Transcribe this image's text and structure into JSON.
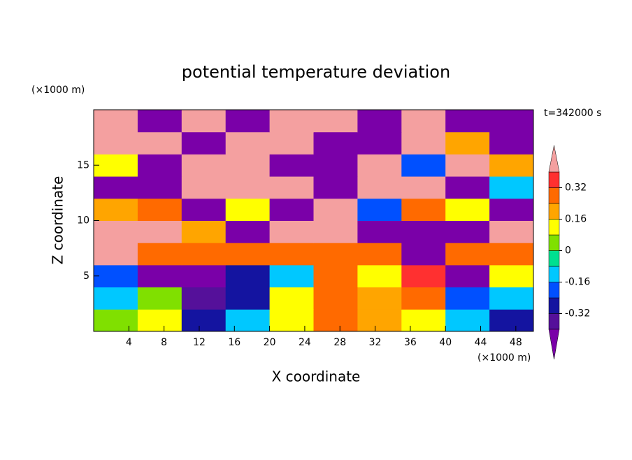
{
  "chart_data": {
    "type": "contour",
    "title": "potential temperature deviation",
    "x_label": "X coordinate",
    "y_label": "Z coordinate",
    "x_unit": "(×1000 m)",
    "y_unit": "(×1000 m)",
    "annotation": "t=342000 s",
    "x": [
      2.5,
      7.5,
      12.5,
      17.5,
      22.5,
      27.5,
      32.5,
      37.5,
      42.5,
      47.5
    ],
    "y": [
      1,
      3,
      5,
      7,
      9,
      11,
      13,
      15,
      17,
      19
    ],
    "z": [
      [
        0,
        0.1,
        -0.3,
        -0.1,
        0.1,
        0.3,
        0.2,
        0.1,
        -0.1,
        -0.3
      ],
      [
        -0.1,
        0.05,
        -0.35,
        -0.3,
        0.1,
        0.3,
        0.2,
        0.3,
        -0.2,
        -0.1
      ],
      [
        -0.2,
        -0.45,
        -0.45,
        -0.3,
        -0.1,
        0.3,
        0.1,
        0.35,
        -0.45,
        0.1
      ],
      [
        0.45,
        0.3,
        0.3,
        0.25,
        0.3,
        0.3,
        0.25,
        -0.45,
        0.3,
        0.3
      ],
      [
        0.45,
        0.45,
        0.2,
        -0.45,
        0.45,
        0.45,
        -0.45,
        -0.45,
        -0.45,
        0.45
      ],
      [
        0.2,
        0.3,
        -0.45,
        0.1,
        -0.45,
        0.45,
        -0.2,
        0.3,
        0.1,
        -0.45
      ],
      [
        -0.45,
        -0.45,
        0.45,
        0.45,
        0.45,
        -0.45,
        0.45,
        0.45,
        -0.45,
        -0.1
      ],
      [
        0.1,
        -0.45,
        0.45,
        0.45,
        -0.45,
        -0.45,
        0.45,
        -0.2,
        0.45,
        0.2
      ],
      [
        0.45,
        0.45,
        -0.45,
        0.45,
        0.45,
        -0.45,
        -0.45,
        0.45,
        0.2,
        -0.45
      ],
      [
        0.45,
        -0.45,
        0.45,
        -0.45,
        0.45,
        0.45,
        -0.45,
        0.45,
        -0.45,
        -0.45
      ]
    ],
    "xlim": [
      0,
      50
    ],
    "ylim": [
      0,
      20
    ],
    "xticks": [
      4,
      8,
      12,
      16,
      20,
      24,
      28,
      32,
      36,
      40,
      44,
      48
    ],
    "yticks": [
      5,
      10,
      15
    ],
    "levels": [
      -0.4,
      -0.32,
      -0.24,
      -0.16,
      -0.08,
      0,
      0.08,
      0.16,
      0.24,
      0.32,
      0.4
    ],
    "colors": [
      "#7a00a8",
      "#55109a",
      "#1414a0",
      "#0050ff",
      "#00c8ff",
      "#00e090",
      "#80e000",
      "#ffff00",
      "#ffa500",
      "#ff6a00",
      "#ff3030",
      "#f4a0a0"
    ],
    "colorbar_ticks": [
      -0.32,
      -0.16,
      0,
      0.16,
      0.32
    ]
  }
}
